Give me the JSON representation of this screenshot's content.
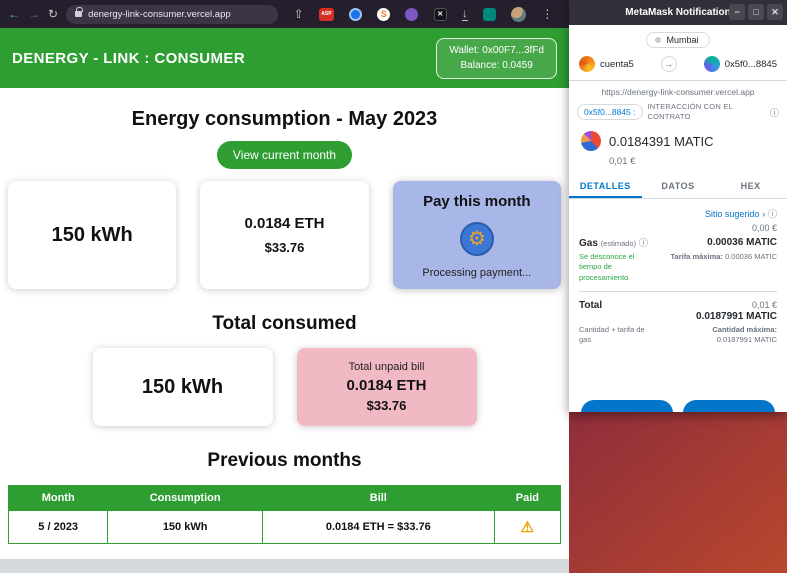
{
  "icons": {
    "warning": "⚠",
    "info": "ⓘ",
    "chevron": "›",
    "arrow": "→",
    "minimize": "−",
    "maximize": "□",
    "close": "✕"
  },
  "browser": {
    "toolbar": {
      "back_icon": "←",
      "forward_icon": "→",
      "refresh_icon": "↻",
      "url": "denergy-link-consumer.vercel.app",
      "share_icon": "⇧",
      "ext_asp_label": "ASP",
      "ext_s_label": "S",
      "ext_x_label": "✕",
      "download_icon": "↓",
      "menu_icon": "⋮"
    }
  },
  "app": {
    "header": {
      "title": "DENERGY - LINK : CONSUMER",
      "wallet": "Wallet: 0x00F7...3fFd",
      "balance": "Balance: 0.0459"
    },
    "main": {
      "title": "Energy consumption - May 2023",
      "view_button": "View current month",
      "cards": {
        "consumption": "150 kWh",
        "bill_eth": "0.0184 ETH",
        "bill_usd": "$33.76",
        "pay_title": "Pay this month",
        "coin_icon": "⚙",
        "pay_status": "Processing payment..."
      },
      "total": {
        "heading": "Total consumed",
        "consumption": "150 kWh",
        "unpaid_label": "Total unpaid bill",
        "unpaid_eth": "0.0184 ETH",
        "unpaid_usd": "$33.76"
      },
      "previous": {
        "heading": "Previous months",
        "headers": [
          "Month",
          "Consumption",
          "Bill",
          "Paid"
        ],
        "rows": [
          {
            "month": "5 / 2023",
            "consumption": "150 kWh",
            "bill": "0.0184 ETH = $33.76"
          }
        ]
      }
    }
  },
  "metamask": {
    "title": "MetaMask Notification",
    "network": "Mumbai",
    "account_from": "cuenta5",
    "account_to": "0x5f0...8845",
    "site": "https://denergy-link-consumer.vercel.app",
    "contract_pill": "0x5f0...8845 :",
    "contract_label": "INTERACCIÓN CON EL CONTRATO",
    "amount": "0.0184391 MATIC",
    "amount_fiat": "0,01 €",
    "tabs": [
      "DETALLES",
      "DATOS",
      "HEX"
    ],
    "suggested_site": "Sitio sugerido",
    "fee_fiat": "0,00 €",
    "gas_label": "Gas",
    "gas_sub": "(estimado)",
    "gas_value": "0.00036 MATIC",
    "gas_note": "Se desconoce el tiempo de procesamiento",
    "max_fee_label": "Tarifa máxima:",
    "max_fee_value": "0.00036 MATIC",
    "total_label": "Total",
    "total_fiat": "0,01 €",
    "total_value": "0.0187991 MATIC",
    "total_sub": "Cantidad + tarifa de gas",
    "max_amount_label": "Cantidad máxima:",
    "max_amount_value": "0.0187991 MATIC"
  }
}
